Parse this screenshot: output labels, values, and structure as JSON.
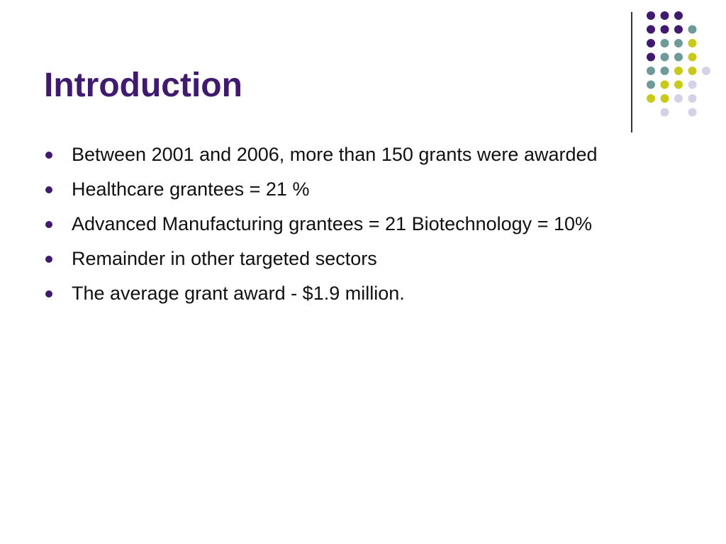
{
  "slide": {
    "title": "Introduction",
    "bullets": [
      "Between 2001 and 2006, more than 150 grants were awarded",
      "Healthcare grantees = 21 %",
      "Advanced Manufacturing grantees = 21 Biotechnology = 10%",
      "Remainder in other targeted sectors",
      "The average grant award - $1.9 million."
    ]
  },
  "colors": {
    "title": "#3f1a6e",
    "bullet_marker": "#3f1a6e",
    "dot_purple": "#3f1a6e",
    "dot_teal": "#6f9a9a",
    "dot_yellow": "#c9c91a",
    "dot_lavender": "#d4d2e6",
    "divider": "#333333"
  }
}
